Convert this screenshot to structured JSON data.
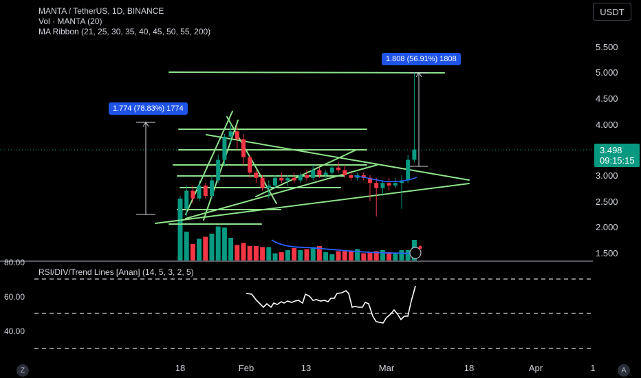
{
  "header": {
    "symbol_line": "MANTA / TetherUS, 1D, BINANCE",
    "volume_line": "Vol · MANTA (20)",
    "ma_line": "MA Ribbon (21, 25, 30, 35, 40, 45, 50, 55, 200)",
    "rsi_line": "RSI/DIV/Trend Lines [Anan] (14, 5, 3, 2, 5)"
  },
  "unit_button": "USDT",
  "current_price": {
    "price": "3.498",
    "countdown": "09:15:15"
  },
  "measurements": [
    {
      "text": "1.774 (78.83%) 1774"
    },
    {
      "text": "1.808 (56.91%) 1808"
    }
  ],
  "price_axis": [
    "5.500",
    "5.000",
    "4.500",
    "4.000",
    "3.000",
    "2.500",
    "2.000",
    "1.500"
  ],
  "rsi_axis": [
    "80.00",
    "60.00",
    "40.00"
  ],
  "date_axis": [
    "18",
    "Feb",
    "13",
    "Mar",
    "18",
    "Apr",
    "1"
  ],
  "corner_buttons": [
    "Z",
    "A"
  ],
  "colors": {
    "up": "#089981",
    "down": "#f23645",
    "lines": "#8fe38b",
    "volume_ma": "#2962ff",
    "rsi": "#ffffff"
  },
  "chart_data": {
    "type": "candlestick",
    "ylim": [
      1.35,
      5.95
    ],
    "candles": [
      {
        "o": 2.25,
        "h": 2.6,
        "l": 2.05,
        "c": 2.35
      },
      {
        "o": 2.35,
        "h": 2.8,
        "l": 2.2,
        "c": 2.7
      },
      {
        "o": 2.7,
        "h": 2.8,
        "l": 2.45,
        "c": 2.55
      },
      {
        "o": 2.55,
        "h": 2.9,
        "l": 2.5,
        "c": 2.8
      },
      {
        "o": 2.8,
        "h": 2.85,
        "l": 2.55,
        "c": 2.6
      },
      {
        "o": 2.6,
        "h": 3.0,
        "l": 2.55,
        "c": 2.9
      },
      {
        "o": 2.9,
        "h": 3.4,
        "l": 2.85,
        "c": 3.3
      },
      {
        "o": 3.3,
        "h": 3.8,
        "l": 3.2,
        "c": 3.75
      },
      {
        "o": 3.75,
        "h": 4.0,
        "l": 3.6,
        "c": 3.85
      },
      {
        "o": 3.85,
        "h": 3.95,
        "l": 3.5,
        "c": 3.7
      },
      {
        "o": 3.7,
        "h": 3.8,
        "l": 3.2,
        "c": 3.35
      },
      {
        "o": 3.35,
        "h": 3.4,
        "l": 2.95,
        "c": 3.05
      },
      {
        "o": 3.05,
        "h": 3.1,
        "l": 2.85,
        "c": 2.95
      },
      {
        "o": 2.95,
        "h": 3.0,
        "l": 2.7,
        "c": 2.75
      },
      {
        "o": 2.75,
        "h": 2.9,
        "l": 2.55,
        "c": 2.8
      },
      {
        "o": 2.8,
        "h": 3.0,
        "l": 2.75,
        "c": 2.95
      },
      {
        "o": 2.95,
        "h": 3.05,
        "l": 2.85,
        "c": 2.9
      },
      {
        "o": 2.9,
        "h": 3.0,
        "l": 2.8,
        "c": 2.95
      },
      {
        "o": 2.95,
        "h": 3.05,
        "l": 2.85,
        "c": 2.9
      },
      {
        "o": 2.9,
        "h": 3.05,
        "l": 2.85,
        "c": 3.0
      },
      {
        "o": 3.0,
        "h": 3.1,
        "l": 2.9,
        "c": 2.95
      },
      {
        "o": 2.95,
        "h": 3.2,
        "l": 2.9,
        "c": 3.1
      },
      {
        "o": 3.1,
        "h": 3.15,
        "l": 2.95,
        "c": 3.0
      },
      {
        "o": 3.0,
        "h": 3.1,
        "l": 2.95,
        "c": 3.05
      },
      {
        "o": 3.05,
        "h": 3.2,
        "l": 3.0,
        "c": 3.15
      },
      {
        "o": 3.15,
        "h": 3.25,
        "l": 3.05,
        "c": 3.1
      },
      {
        "o": 3.1,
        "h": 3.2,
        "l": 2.95,
        "c": 3.0
      },
      {
        "o": 3.0,
        "h": 3.05,
        "l": 2.9,
        "c": 2.95
      },
      {
        "o": 2.95,
        "h": 3.05,
        "l": 2.9,
        "c": 3.0
      },
      {
        "o": 3.0,
        "h": 3.05,
        "l": 2.9,
        "c": 2.95
      },
      {
        "o": 2.95,
        "h": 3.0,
        "l": 2.5,
        "c": 2.85
      },
      {
        "o": 2.85,
        "h": 2.95,
        "l": 2.2,
        "c": 2.75
      },
      {
        "o": 2.75,
        "h": 2.9,
        "l": 2.6,
        "c": 2.85
      },
      {
        "o": 2.85,
        "h": 2.95,
        "l": 2.7,
        "c": 2.8
      },
      {
        "o": 2.8,
        "h": 2.95,
        "l": 2.75,
        "c": 2.85
      },
      {
        "o": 2.85,
        "h": 3.0,
        "l": 2.35,
        "c": 2.9
      },
      {
        "o": 2.9,
        "h": 3.4,
        "l": 2.85,
        "c": 3.3
      },
      {
        "o": 3.3,
        "h": 5.0,
        "l": 3.25,
        "c": 3.5
      }
    ],
    "volume": [
      6,
      2.8,
      1.6,
      2.1,
      2.3,
      2.6,
      3.3,
      3.2,
      2.2,
      1.5,
      1.7,
      1.4,
      1.4,
      1.3,
      1.3,
      0.7,
      0.8,
      1.0,
      1.2,
      1.0,
      1.1,
      1.3,
      1.4,
      0.8,
      0.6,
      0.9,
      1.0,
      0.9,
      1.1,
      0.7,
      0.8,
      0.9,
      1.0,
      0.8,
      0.7,
      1.0,
      1.0,
      2.0
    ],
    "volume_ma": [
      null,
      null,
      null,
      null,
      null,
      null,
      null,
      null,
      null,
      null,
      null,
      null,
      null,
      null,
      null,
      null,
      null,
      null,
      null,
      null,
      null,
      null,
      null,
      null,
      null,
      null,
      null,
      null,
      null,
      null,
      null,
      null,
      null,
      null,
      null,
      null,
      null,
      null
    ],
    "rsi": [
      [
        358,
        427
      ],
      [
        366,
        428
      ],
      [
        372,
        436
      ],
      [
        379,
        443
      ],
      [
        383,
        447
      ],
      [
        388,
        442
      ],
      [
        394,
        447
      ],
      [
        398,
        441
      ],
      [
        403,
        443
      ],
      [
        409,
        439
      ],
      [
        413,
        441
      ],
      [
        418,
        438
      ],
      [
        424,
        440
      ],
      [
        429,
        438
      ],
      [
        434,
        437
      ],
      [
        440,
        441
      ],
      [
        444,
        428
      ],
      [
        450,
        431
      ],
      [
        455,
        437
      ],
      [
        460,
        436
      ],
      [
        466,
        438
      ],
      [
        472,
        437
      ],
      [
        477,
        439
      ],
      [
        481,
        434
      ],
      [
        486,
        434
      ],
      [
        490,
        427
      ],
      [
        497,
        426
      ],
      [
        503,
        423
      ],
      [
        507,
        427
      ],
      [
        512,
        447
      ],
      [
        516,
        446
      ],
      [
        522,
        447
      ],
      [
        527,
        447
      ],
      [
        531,
        440
      ],
      [
        536,
        442
      ],
      [
        542,
        460
      ],
      [
        547,
        468
      ],
      [
        552,
        469
      ],
      [
        557,
        470
      ],
      [
        562,
        462
      ],
      [
        567,
        458
      ],
      [
        573,
        451
      ],
      [
        578,
        457
      ],
      [
        583,
        465
      ],
      [
        588,
        460
      ],
      [
        593,
        460
      ],
      [
        598,
        438
      ],
      [
        604,
        416
      ]
    ]
  }
}
